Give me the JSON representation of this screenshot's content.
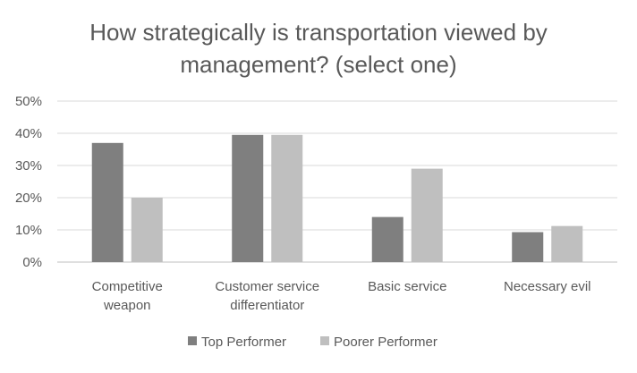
{
  "chart_data": {
    "type": "bar",
    "title_lines": [
      "How strategically is transportation viewed by",
      "management? (select one)"
    ],
    "categories": [
      [
        "Competitive",
        "weapon"
      ],
      [
        "Customer service",
        "differentiator"
      ],
      [
        "Basic service"
      ],
      [
        "Necessary evil"
      ]
    ],
    "series": [
      {
        "name": "Top Performer",
        "color": "#7f7f7f",
        "values": [
          37,
          39.5,
          14,
          9.3
        ]
      },
      {
        "name": "Poorer Performer",
        "color": "#bfbfbf",
        "values": [
          20,
          39.5,
          29,
          11.2
        ]
      }
    ],
    "ylim": [
      0,
      50
    ],
    "yticks": [
      "0%",
      "10%",
      "20%",
      "30%",
      "40%",
      "50%"
    ],
    "ytick_values": [
      0,
      10,
      20,
      30,
      40,
      50
    ],
    "grid": true,
    "legend_position": "bottom"
  }
}
